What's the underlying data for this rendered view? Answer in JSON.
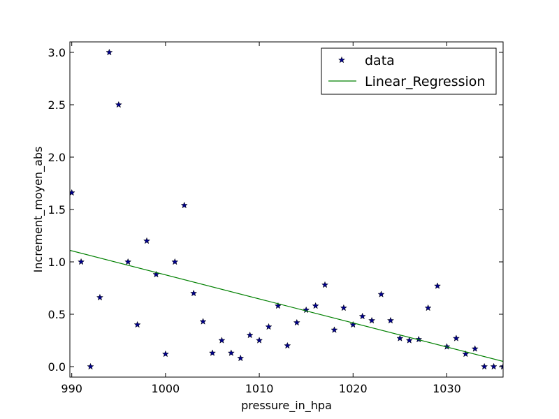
{
  "chart_data": {
    "type": "scatter",
    "title": "",
    "xlabel": "pressure_in_hpa",
    "ylabel": "Increment_moyen_abs",
    "xlim": [
      989.8,
      1036
    ],
    "ylim": [
      -0.1,
      3.1
    ],
    "xticks": [
      990,
      1000,
      1010,
      1020,
      1030
    ],
    "xtick_labels": [
      "990",
      "1000",
      "1010",
      "1020",
      "1030"
    ],
    "yticks": [
      0.0,
      0.5,
      1.0,
      1.5,
      2.0,
      2.5,
      3.0
    ],
    "ytick_labels": [
      "0.0",
      "0.5",
      "1.0",
      "1.5",
      "2.0",
      "2.5",
      "3.0"
    ],
    "grid": false,
    "legend_position": "top-right",
    "series": [
      {
        "name": "data",
        "kind": "scatter",
        "marker": "star",
        "color": "#00008b",
        "x": [
          990,
          991,
          992,
          993,
          994,
          995,
          996,
          997,
          998,
          999,
          1000,
          1001,
          1002,
          1003,
          1004,
          1005,
          1006,
          1007,
          1008,
          1009,
          1010,
          1011,
          1012,
          1013,
          1014,
          1015,
          1016,
          1017,
          1018,
          1019,
          1020,
          1021,
          1022,
          1023,
          1024,
          1025,
          1026,
          1027,
          1028,
          1029,
          1030,
          1031,
          1032,
          1033,
          1034,
          1035,
          1036
        ],
        "y": [
          1.66,
          1.0,
          0.0,
          0.66,
          3.0,
          2.5,
          1.0,
          0.4,
          1.2,
          0.88,
          0.12,
          1.0,
          1.54,
          0.7,
          0.43,
          0.13,
          0.25,
          0.13,
          0.08,
          0.3,
          0.25,
          0.38,
          0.58,
          0.2,
          0.42,
          0.54,
          0.58,
          0.78,
          0.35,
          0.56,
          0.4,
          0.48,
          0.44,
          0.69,
          0.44,
          0.27,
          0.25,
          0.26,
          0.56,
          0.77,
          0.19,
          0.27,
          0.12,
          0.17,
          0.0,
          0.0,
          0.0
        ]
      },
      {
        "name": "Linear_Regression",
        "kind": "line",
        "color": "#008000",
        "x": [
          989.8,
          1036
        ],
        "y": [
          1.11,
          0.05
        ]
      }
    ]
  }
}
